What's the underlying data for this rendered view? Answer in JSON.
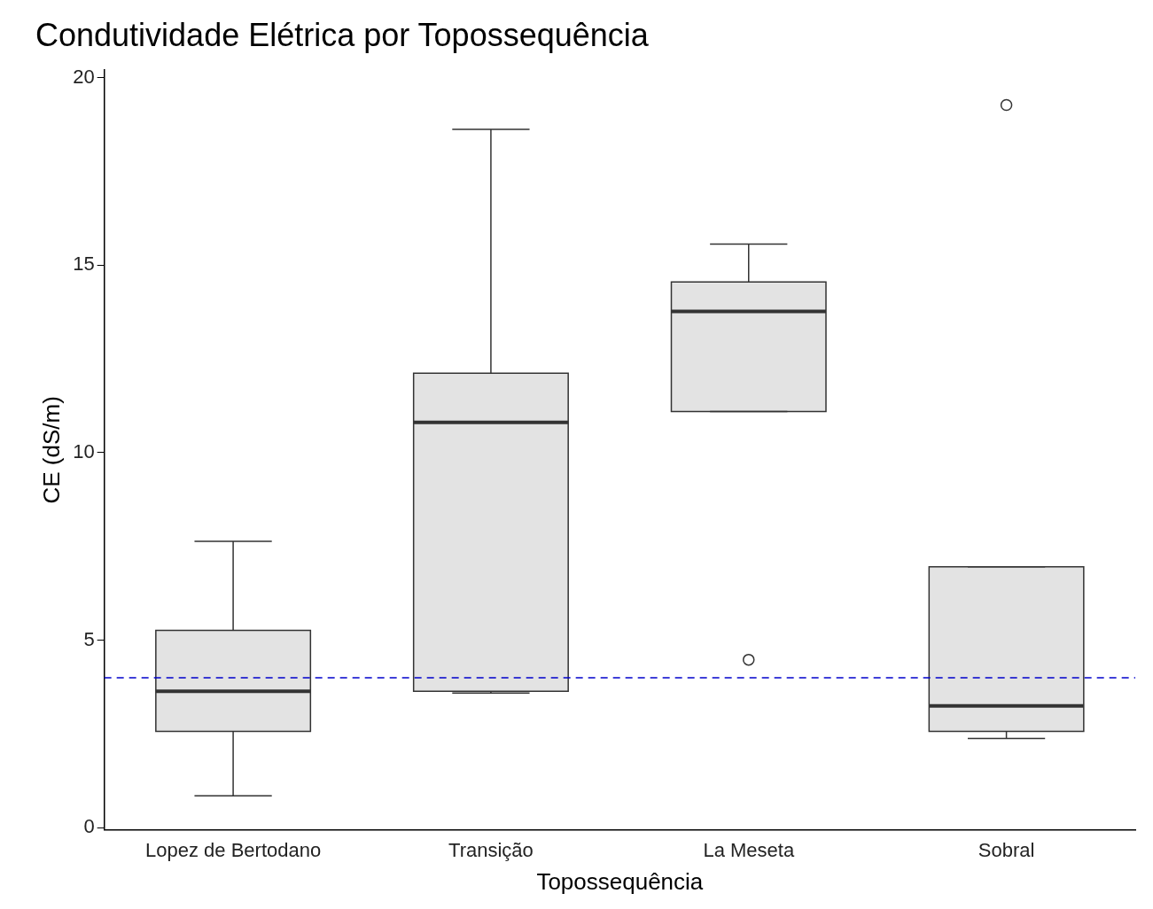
{
  "chart_data": {
    "type": "box",
    "title": "Condutividade Elétrica por Topossequência",
    "xlabel": "Topossequência",
    "ylabel": "CE (dS/m)",
    "categories": [
      "Lopez de Bertodano",
      "Transição",
      "La Meseta",
      "Sobral"
    ],
    "color": "#e3e3e3",
    "boxes": [
      {
        "low": 0.85,
        "q1": 2.57,
        "median": 3.64,
        "q3": 5.26,
        "high": 7.64
      },
      {
        "low": 3.59,
        "q1": 3.64,
        "median": 10.81,
        "q3": 12.12,
        "high": 18.62
      },
      {
        "low": 11.1,
        "q1": 11.1,
        "median": 13.77,
        "q3": 14.55,
        "high": 15.56,
        "outliers": [
          4.48
        ]
      },
      {
        "low": 2.38,
        "q1": 2.57,
        "median": 3.25,
        "q3": 6.96,
        "high": 6.96,
        "outliers": [
          19.27
        ]
      }
    ],
    "ylim": [
      -0.05,
      20.2
    ],
    "yticks": [
      0,
      5,
      10,
      15,
      20
    ],
    "grid": false,
    "legend": false,
    "ref_lines": [
      {
        "axis": "y",
        "value": 4,
        "color": "#0000cc",
        "line_style": "dashed"
      }
    ]
  }
}
